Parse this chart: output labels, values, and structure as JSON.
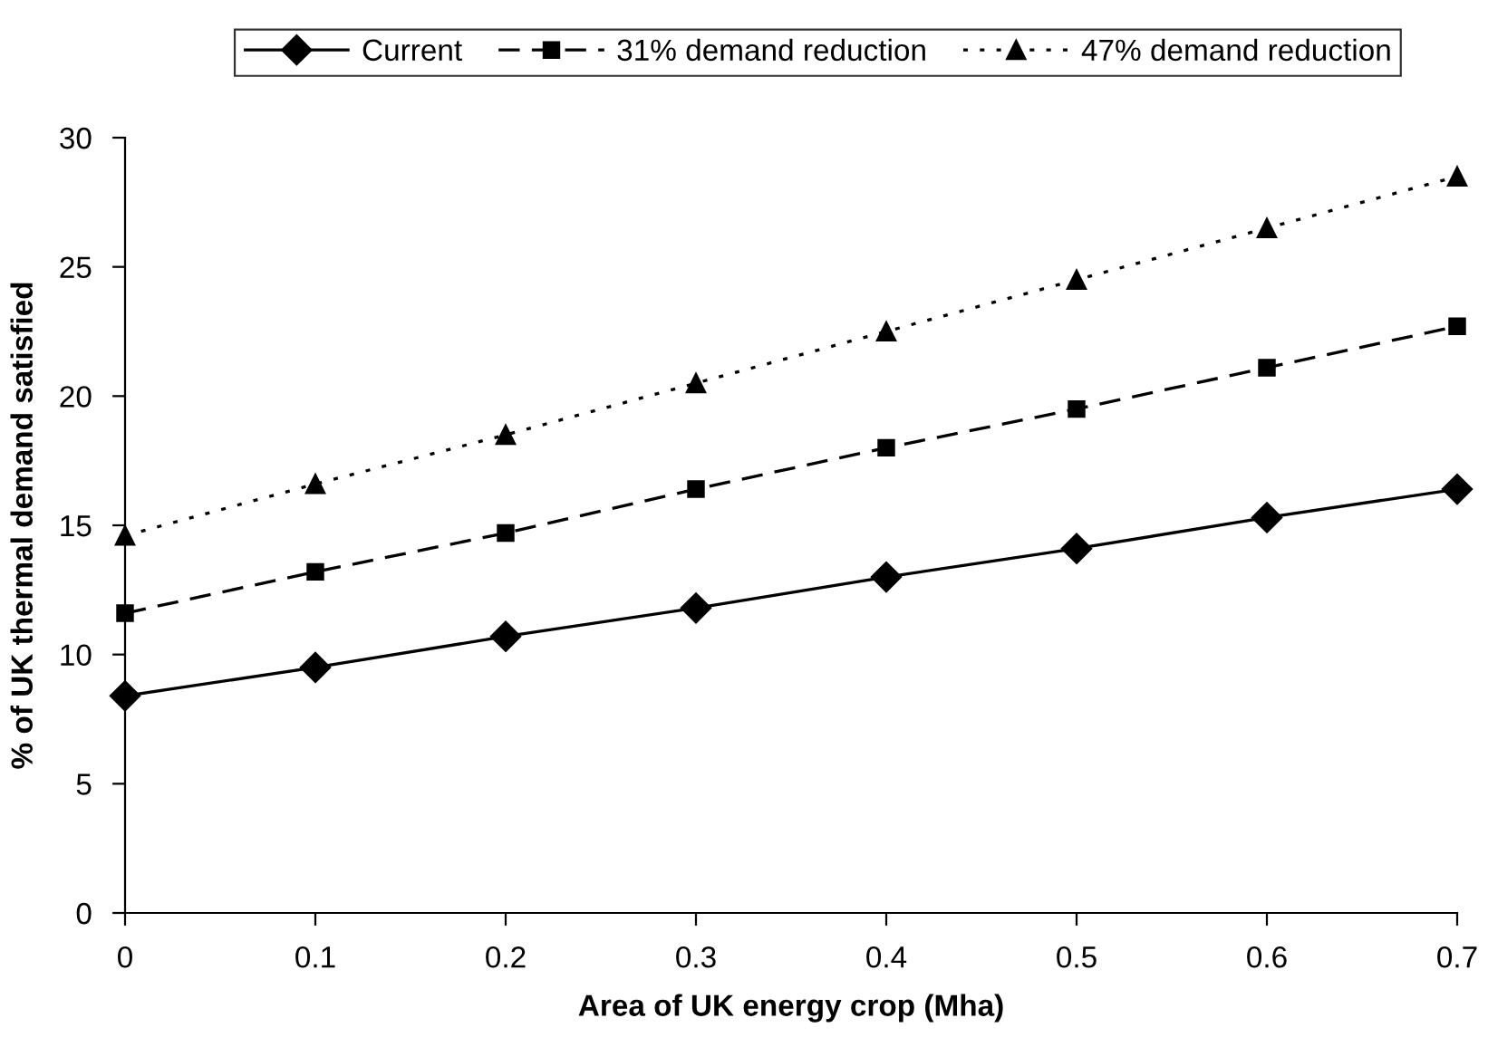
{
  "chart_data": {
    "type": "line",
    "xlabel": "Area of UK energy crop (Mha)",
    "ylabel": "% of UK thermal demand satisfied",
    "x": [
      0,
      0.1,
      0.2,
      0.3,
      0.4,
      0.5,
      0.6,
      0.7
    ],
    "series": [
      {
        "name": "Current",
        "color": "#000000",
        "marker": "diamond",
        "line_style": "solid",
        "values": [
          8.4,
          9.5,
          10.7,
          11.8,
          13.0,
          14.1,
          15.3,
          16.4
        ]
      },
      {
        "name": "31% demand reduction",
        "color": "#000000",
        "marker": "square",
        "line_style": "dashed",
        "values": [
          11.6,
          13.2,
          14.7,
          16.4,
          18.0,
          19.5,
          21.1,
          22.7
        ]
      },
      {
        "name": "47% demand reduction",
        "color": "#000000",
        "marker": "triangle",
        "line_style": "dotted",
        "values": [
          14.6,
          16.6,
          18.5,
          20.5,
          22.5,
          24.5,
          26.5,
          28.5
        ]
      }
    ],
    "xlim": [
      0,
      0.7
    ],
    "xticks": [
      0,
      0.1,
      0.2,
      0.3,
      0.4,
      0.5,
      0.6,
      0.7
    ],
    "ylim": [
      0,
      30
    ],
    "yticks": [
      0,
      5,
      10,
      15,
      20,
      25,
      30
    ],
    "grid": false,
    "legend": "top"
  }
}
